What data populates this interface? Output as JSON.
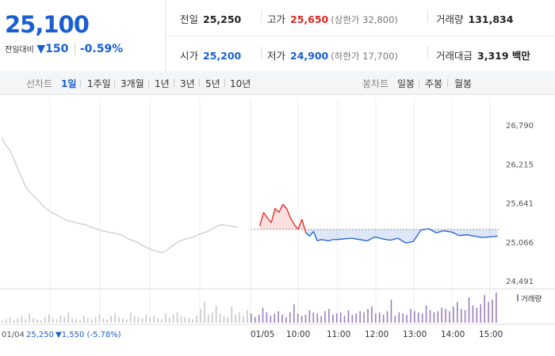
{
  "price": {
    "current": "25,100",
    "change_label": "전일대비",
    "change_arrow": "▼",
    "change_value": "150",
    "change_pct": "-0.59%"
  },
  "stats": {
    "prev_close": {
      "label": "전일",
      "value": "25,250"
    },
    "high": {
      "label": "고가",
      "value": "25,650",
      "limit": "(상한가 32,800)"
    },
    "volume": {
      "label": "거래량",
      "value": "131,834"
    },
    "open": {
      "label": "시가",
      "value": "25,200"
    },
    "low": {
      "label": "저가",
      "value": "24,900",
      "limit": "(하한가 17,700)"
    },
    "amount": {
      "label": "거래대금",
      "value": "3,319 백만"
    }
  },
  "tabs": {
    "line_label": "선차트",
    "line_items": [
      "1일",
      "1주일",
      "3개월",
      "1년",
      "3년",
      "5년",
      "10년"
    ],
    "active": "1일",
    "candle_label": "봉차트",
    "candle_items": [
      "일봉",
      "주봉",
      "월봉"
    ]
  },
  "colors": {
    "up": "#e0261f",
    "down": "#1a5fd1",
    "prev_day": "#c8c8c8",
    "volume": "#9b7fbf"
  },
  "chart_data": {
    "type": "line",
    "yticks": [
      "26,790",
      "26,215",
      "25,641",
      "25,066",
      "24,491"
    ],
    "ylim": [
      24491,
      26790
    ],
    "base_price": 25250,
    "volume_label": "거래량",
    "xticks": [
      "01/05",
      "10:00",
      "11:00",
      "12:00",
      "13:00",
      "14:00",
      "15:00"
    ],
    "prev_day_label": "01/04",
    "prev_day_close": "25,250",
    "prev_day_change": "▼1,550 (-5.78%)",
    "prev_day_series": {
      "name": "01/04",
      "values": [
        26600,
        26500,
        26420,
        26300,
        26150,
        26020,
        25880,
        25800,
        25740,
        25690,
        25620,
        25560,
        25520,
        25480,
        25460,
        25420,
        25390,
        25370,
        25360,
        25340,
        25330,
        25320,
        25290,
        25270,
        25250,
        25230,
        25220,
        25200,
        25200,
        25180,
        25170,
        25130,
        25100,
        25080,
        25060,
        25020,
        24990,
        24960,
        24940,
        24920,
        24910,
        24930,
        24980,
        25020,
        25060,
        25090,
        25110,
        25120,
        25140,
        25170,
        25190,
        25210,
        25240,
        25270,
        25300,
        25320,
        25310,
        25300,
        25290,
        25280
      ]
    },
    "today_series": {
      "name": "01/05",
      "x_hours": [
        9.0,
        9.1,
        9.2,
        9.3,
        9.4,
        9.5,
        9.6,
        9.7,
        9.8,
        9.9,
        10.0,
        10.1,
        10.2,
        10.3,
        10.4,
        10.5,
        10.6,
        10.7,
        10.8,
        10.9,
        11.0,
        11.2,
        11.4,
        11.6,
        11.8,
        12.0,
        12.2,
        12.4,
        12.6,
        12.8,
        13.0,
        13.2,
        13.4,
        13.6,
        13.8,
        14.0,
        14.2,
        14.4,
        14.6,
        14.8,
        15.0,
        15.2
      ],
      "values": [
        25300,
        25500,
        25420,
        25350,
        25560,
        25500,
        25620,
        25560,
        25420,
        25320,
        25250,
        25400,
        25200,
        25150,
        25220,
        25080,
        25100,
        25090,
        25080,
        25100,
        25100,
        25110,
        25120,
        25100,
        25080,
        25140,
        25110,
        25090,
        25120,
        25050,
        25070,
        25240,
        25260,
        25200,
        25230,
        25210,
        25160,
        25170,
        25150,
        25130,
        25140,
        25150
      ]
    },
    "volume": {
      "values": [
        2,
        3,
        5,
        2,
        4,
        6,
        3,
        8,
        4,
        3,
        2,
        5,
        7,
        4,
        3,
        6,
        5,
        9,
        4,
        3,
        2,
        6,
        4,
        3,
        5,
        7,
        4,
        3,
        6,
        8,
        5,
        4,
        3,
        9,
        6,
        5,
        4,
        7,
        5,
        6,
        4,
        3,
        8,
        5,
        7,
        9,
        6,
        5,
        4,
        3,
        6,
        12,
        18,
        7,
        9,
        15,
        8,
        6,
        5,
        14,
        7,
        9,
        6,
        11,
        8,
        5,
        7,
        13,
        9,
        6,
        8,
        10,
        7,
        5,
        9,
        16,
        8,
        6,
        7,
        11,
        9,
        8,
        6,
        10,
        12,
        7,
        8,
        9,
        6,
        11,
        7,
        8,
        10,
        9,
        12,
        14,
        8,
        9,
        7,
        10,
        20,
        6,
        9,
        8,
        7,
        12,
        10,
        9,
        8,
        15,
        11,
        9,
        10,
        13,
        12,
        10,
        14,
        18,
        12,
        11,
        22,
        15,
        13,
        16,
        24,
        18,
        20,
        26
      ]
    }
  }
}
